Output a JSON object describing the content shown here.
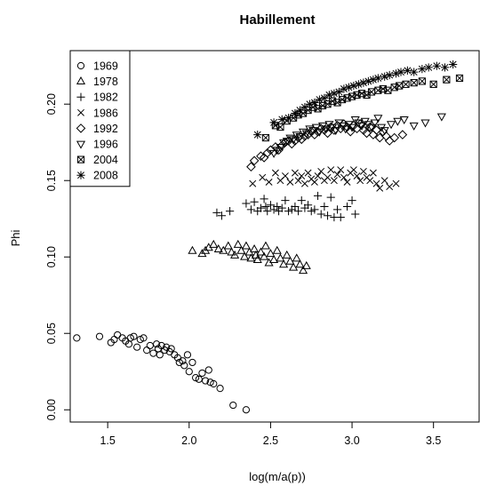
{
  "chart_data": {
    "type": "scatter",
    "title": "Habillement",
    "xlabel": "log(m/a(p))",
    "ylabel": "Phi",
    "xlim": [
      1.27,
      3.78
    ],
    "ylim": [
      -0.008,
      0.235
    ],
    "x_ticks": [
      1.5,
      2.0,
      2.5,
      3.0,
      3.5
    ],
    "x_tick_labels": [
      "1.5",
      "2.0",
      "2.5",
      "3.0",
      "3.5"
    ],
    "y_ticks": [
      0.0,
      0.05,
      0.1,
      0.15,
      0.2
    ],
    "y_tick_labels": [
      "0.00",
      "0.05",
      "0.10",
      "0.15",
      "0.20"
    ],
    "legend_position": "top-left",
    "series": [
      {
        "name": "1969",
        "marker": "circle",
        "points": [
          [
            1.31,
            0.047
          ],
          [
            1.45,
            0.048
          ],
          [
            1.52,
            0.044
          ],
          [
            1.54,
            0.046
          ],
          [
            1.56,
            0.049
          ],
          [
            1.59,
            0.047
          ],
          [
            1.61,
            0.045
          ],
          [
            1.63,
            0.043
          ],
          [
            1.64,
            0.047
          ],
          [
            1.66,
            0.048
          ],
          [
            1.68,
            0.041
          ],
          [
            1.7,
            0.046
          ],
          [
            1.72,
            0.047
          ],
          [
            1.74,
            0.039
          ],
          [
            1.76,
            0.042
          ],
          [
            1.78,
            0.037
          ],
          [
            1.8,
            0.043
          ],
          [
            1.81,
            0.04
          ],
          [
            1.82,
            0.036
          ],
          [
            1.83,
            0.042
          ],
          [
            1.85,
            0.039
          ],
          [
            1.86,
            0.041
          ],
          [
            1.88,
            0.038
          ],
          [
            1.89,
            0.04
          ],
          [
            1.91,
            0.036
          ],
          [
            1.93,
            0.034
          ],
          [
            1.94,
            0.031
          ],
          [
            1.96,
            0.032
          ],
          [
            1.97,
            0.029
          ],
          [
            1.99,
            0.036
          ],
          [
            2.0,
            0.025
          ],
          [
            2.02,
            0.031
          ],
          [
            2.04,
            0.021
          ],
          [
            2.06,
            0.02
          ],
          [
            2.08,
            0.024
          ],
          [
            2.1,
            0.019
          ],
          [
            2.12,
            0.026
          ],
          [
            2.13,
            0.018
          ],
          [
            2.15,
            0.017
          ],
          [
            2.19,
            0.014
          ],
          [
            2.27,
            0.003
          ],
          [
            2.35,
            0.0
          ]
        ]
      },
      {
        "name": "1978",
        "marker": "triangle-up",
        "points": [
          [
            2.02,
            0.104
          ],
          [
            2.08,
            0.102
          ],
          [
            2.1,
            0.104
          ],
          [
            2.12,
            0.106
          ],
          [
            2.15,
            0.108
          ],
          [
            2.18,
            0.105
          ],
          [
            2.21,
            0.104
          ],
          [
            2.24,
            0.107
          ],
          [
            2.26,
            0.103
          ],
          [
            2.28,
            0.101
          ],
          [
            2.3,
            0.108
          ],
          [
            2.32,
            0.104
          ],
          [
            2.34,
            0.1
          ],
          [
            2.35,
            0.107
          ],
          [
            2.37,
            0.103
          ],
          [
            2.38,
            0.099
          ],
          [
            2.4,
            0.105
          ],
          [
            2.41,
            0.101
          ],
          [
            2.42,
            0.098
          ],
          [
            2.44,
            0.103
          ],
          [
            2.46,
            0.1
          ],
          [
            2.47,
            0.107
          ],
          [
            2.49,
            0.096
          ],
          [
            2.5,
            0.102
          ],
          [
            2.52,
            0.098
          ],
          [
            2.54,
            0.104
          ],
          [
            2.56,
            0.099
          ],
          [
            2.58,
            0.095
          ],
          [
            2.6,
            0.101
          ],
          [
            2.62,
            0.097
          ],
          [
            2.64,
            0.093
          ],
          [
            2.66,
            0.099
          ],
          [
            2.68,
            0.095
          ],
          [
            2.7,
            0.091
          ],
          [
            2.72,
            0.094
          ]
        ]
      },
      {
        "name": "1982",
        "marker": "plus",
        "points": [
          [
            2.17,
            0.129
          ],
          [
            2.2,
            0.127
          ],
          [
            2.25,
            0.13
          ],
          [
            2.35,
            0.135
          ],
          [
            2.38,
            0.131
          ],
          [
            2.4,
            0.136
          ],
          [
            2.42,
            0.13
          ],
          [
            2.44,
            0.132
          ],
          [
            2.46,
            0.138
          ],
          [
            2.47,
            0.133
          ],
          [
            2.48,
            0.13
          ],
          [
            2.5,
            0.134
          ],
          [
            2.52,
            0.131
          ],
          [
            2.54,
            0.133
          ],
          [
            2.55,
            0.13
          ],
          [
            2.57,
            0.132
          ],
          [
            2.59,
            0.137
          ],
          [
            2.61,
            0.13
          ],
          [
            2.63,
            0.131
          ],
          [
            2.65,
            0.133
          ],
          [
            2.67,
            0.13
          ],
          [
            2.69,
            0.137
          ],
          [
            2.71,
            0.132
          ],
          [
            2.73,
            0.134
          ],
          [
            2.75,
            0.13
          ],
          [
            2.77,
            0.131
          ],
          [
            2.79,
            0.14
          ],
          [
            2.81,
            0.128
          ],
          [
            2.83,
            0.133
          ],
          [
            2.85,
            0.127
          ],
          [
            2.87,
            0.139
          ],
          [
            2.89,
            0.126
          ],
          [
            2.91,
            0.131
          ],
          [
            2.93,
            0.126
          ],
          [
            2.97,
            0.133
          ],
          [
            3.0,
            0.137
          ],
          [
            3.02,
            0.128
          ]
        ]
      },
      {
        "name": "1986",
        "marker": "cross",
        "points": [
          [
            2.39,
            0.148
          ],
          [
            2.45,
            0.152
          ],
          [
            2.49,
            0.149
          ],
          [
            2.53,
            0.155
          ],
          [
            2.56,
            0.15
          ],
          [
            2.59,
            0.153
          ],
          [
            2.62,
            0.149
          ],
          [
            2.65,
            0.155
          ],
          [
            2.67,
            0.15
          ],
          [
            2.69,
            0.153
          ],
          [
            2.71,
            0.148
          ],
          [
            2.73,
            0.155
          ],
          [
            2.75,
            0.151
          ],
          [
            2.77,
            0.149
          ],
          [
            2.79,
            0.153
          ],
          [
            2.81,
            0.156
          ],
          [
            2.83,
            0.15
          ],
          [
            2.85,
            0.152
          ],
          [
            2.87,
            0.157
          ],
          [
            2.89,
            0.15
          ],
          [
            2.91,
            0.154
          ],
          [
            2.93,
            0.157
          ],
          [
            2.95,
            0.152
          ],
          [
            2.97,
            0.149
          ],
          [
            2.99,
            0.155
          ],
          [
            3.01,
            0.157
          ],
          [
            3.03,
            0.153
          ],
          [
            3.05,
            0.15
          ],
          [
            3.07,
            0.156
          ],
          [
            3.09,
            0.152
          ],
          [
            3.11,
            0.15
          ],
          [
            3.13,
            0.155
          ],
          [
            3.15,
            0.148
          ],
          [
            3.17,
            0.145
          ],
          [
            3.2,
            0.15
          ],
          [
            3.23,
            0.146
          ],
          [
            3.27,
            0.148
          ]
        ]
      },
      {
        "name": "1992",
        "marker": "diamond",
        "points": [
          [
            2.38,
            0.159
          ],
          [
            2.4,
            0.163
          ],
          [
            2.44,
            0.166
          ],
          [
            2.46,
            0.165
          ],
          [
            2.48,
            0.168
          ],
          [
            2.5,
            0.17
          ],
          [
            2.53,
            0.172
          ],
          [
            2.55,
            0.17
          ],
          [
            2.57,
            0.173
          ],
          [
            2.59,
            0.175
          ],
          [
            2.61,
            0.176
          ],
          [
            2.63,
            0.174
          ],
          [
            2.65,
            0.176
          ],
          [
            2.67,
            0.178
          ],
          [
            2.69,
            0.177
          ],
          [
            2.71,
            0.179
          ],
          [
            2.73,
            0.18
          ],
          [
            2.75,
            0.182
          ],
          [
            2.77,
            0.18
          ],
          [
            2.79,
            0.182
          ],
          [
            2.81,
            0.184
          ],
          [
            2.83,
            0.183
          ],
          [
            2.85,
            0.181
          ],
          [
            2.87,
            0.185
          ],
          [
            2.89,
            0.183
          ],
          [
            2.91,
            0.186
          ],
          [
            2.93,
            0.184
          ],
          [
            2.95,
            0.187
          ],
          [
            2.97,
            0.185
          ],
          [
            2.99,
            0.182
          ],
          [
            3.01,
            0.186
          ],
          [
            3.03,
            0.184
          ],
          [
            3.05,
            0.187
          ],
          [
            3.07,
            0.183
          ],
          [
            3.09,
            0.181
          ],
          [
            3.11,
            0.185
          ],
          [
            3.13,
            0.18
          ],
          [
            3.15,
            0.183
          ],
          [
            3.17,
            0.178
          ],
          [
            3.19,
            0.182
          ],
          [
            3.21,
            0.179
          ],
          [
            3.23,
            0.176
          ],
          [
            3.26,
            0.178
          ],
          [
            3.31,
            0.18
          ]
        ]
      },
      {
        "name": "1996",
        "marker": "triangle-down",
        "points": [
          [
            2.52,
            0.168
          ],
          [
            2.54,
            0.17
          ],
          [
            2.56,
            0.172
          ],
          [
            2.58,
            0.175
          ],
          [
            2.6,
            0.176
          ],
          [
            2.62,
            0.178
          ],
          [
            2.64,
            0.177
          ],
          [
            2.66,
            0.18
          ],
          [
            2.68,
            0.179
          ],
          [
            2.7,
            0.182
          ],
          [
            2.72,
            0.181
          ],
          [
            2.74,
            0.184
          ],
          [
            2.76,
            0.183
          ],
          [
            2.78,
            0.185
          ],
          [
            2.8,
            0.182
          ],
          [
            2.82,
            0.186
          ],
          [
            2.84,
            0.184
          ],
          [
            2.86,
            0.187
          ],
          [
            2.88,
            0.185
          ],
          [
            2.9,
            0.183
          ],
          [
            2.92,
            0.188
          ],
          [
            2.94,
            0.186
          ],
          [
            2.96,
            0.184
          ],
          [
            2.98,
            0.187
          ],
          [
            3.0,
            0.185
          ],
          [
            3.02,
            0.19
          ],
          [
            3.04,
            0.188
          ],
          [
            3.06,
            0.186
          ],
          [
            3.08,
            0.189
          ],
          [
            3.1,
            0.187
          ],
          [
            3.12,
            0.185
          ],
          [
            3.14,
            0.188
          ],
          [
            3.16,
            0.191
          ],
          [
            3.18,
            0.185
          ],
          [
            3.2,
            0.183
          ],
          [
            3.24,
            0.187
          ],
          [
            3.28,
            0.189
          ],
          [
            3.32,
            0.19
          ],
          [
            3.38,
            0.186
          ],
          [
            3.45,
            0.188
          ],
          [
            3.55,
            0.192
          ]
        ]
      },
      {
        "name": "2004",
        "marker": "square-cross",
        "points": [
          [
            2.47,
            0.178
          ],
          [
            2.53,
            0.186
          ],
          [
            2.56,
            0.185
          ],
          [
            2.6,
            0.189
          ],
          [
            2.64,
            0.191
          ],
          [
            2.67,
            0.193
          ],
          [
            2.7,
            0.194
          ],
          [
            2.73,
            0.196
          ],
          [
            2.76,
            0.198
          ],
          [
            2.79,
            0.197
          ],
          [
            2.82,
            0.199
          ],
          [
            2.85,
            0.2
          ],
          [
            2.88,
            0.202
          ],
          [
            2.91,
            0.201
          ],
          [
            2.94,
            0.203
          ],
          [
            2.97,
            0.204
          ],
          [
            3.0,
            0.205
          ],
          [
            3.03,
            0.206
          ],
          [
            3.06,
            0.207
          ],
          [
            3.09,
            0.206
          ],
          [
            3.12,
            0.208
          ],
          [
            3.16,
            0.209
          ],
          [
            3.19,
            0.21
          ],
          [
            3.22,
            0.209
          ],
          [
            3.26,
            0.211
          ],
          [
            3.29,
            0.212
          ],
          [
            3.33,
            0.213
          ],
          [
            3.38,
            0.214
          ],
          [
            3.43,
            0.215
          ],
          [
            3.5,
            0.213
          ],
          [
            3.58,
            0.216
          ],
          [
            3.66,
            0.217
          ]
        ]
      },
      {
        "name": "2008",
        "marker": "asterisk",
        "points": [
          [
            2.42,
            0.18
          ],
          [
            2.52,
            0.188
          ],
          [
            2.57,
            0.19
          ],
          [
            2.61,
            0.191
          ],
          [
            2.65,
            0.194
          ],
          [
            2.68,
            0.196
          ],
          [
            2.71,
            0.198
          ],
          [
            2.74,
            0.2
          ],
          [
            2.77,
            0.201
          ],
          [
            2.8,
            0.203
          ],
          [
            2.83,
            0.204
          ],
          [
            2.86,
            0.206
          ],
          [
            2.89,
            0.207
          ],
          [
            2.92,
            0.208
          ],
          [
            2.95,
            0.21
          ],
          [
            2.98,
            0.211
          ],
          [
            3.01,
            0.212
          ],
          [
            3.04,
            0.213
          ],
          [
            3.07,
            0.214
          ],
          [
            3.1,
            0.215
          ],
          [
            3.13,
            0.216
          ],
          [
            3.16,
            0.217
          ],
          [
            3.2,
            0.218
          ],
          [
            3.23,
            0.219
          ],
          [
            3.27,
            0.22
          ],
          [
            3.3,
            0.221
          ],
          [
            3.34,
            0.222
          ],
          [
            3.38,
            0.221
          ],
          [
            3.43,
            0.223
          ],
          [
            3.47,
            0.224
          ],
          [
            3.52,
            0.225
          ],
          [
            3.57,
            0.224
          ],
          [
            3.62,
            0.226
          ]
        ]
      }
    ]
  }
}
